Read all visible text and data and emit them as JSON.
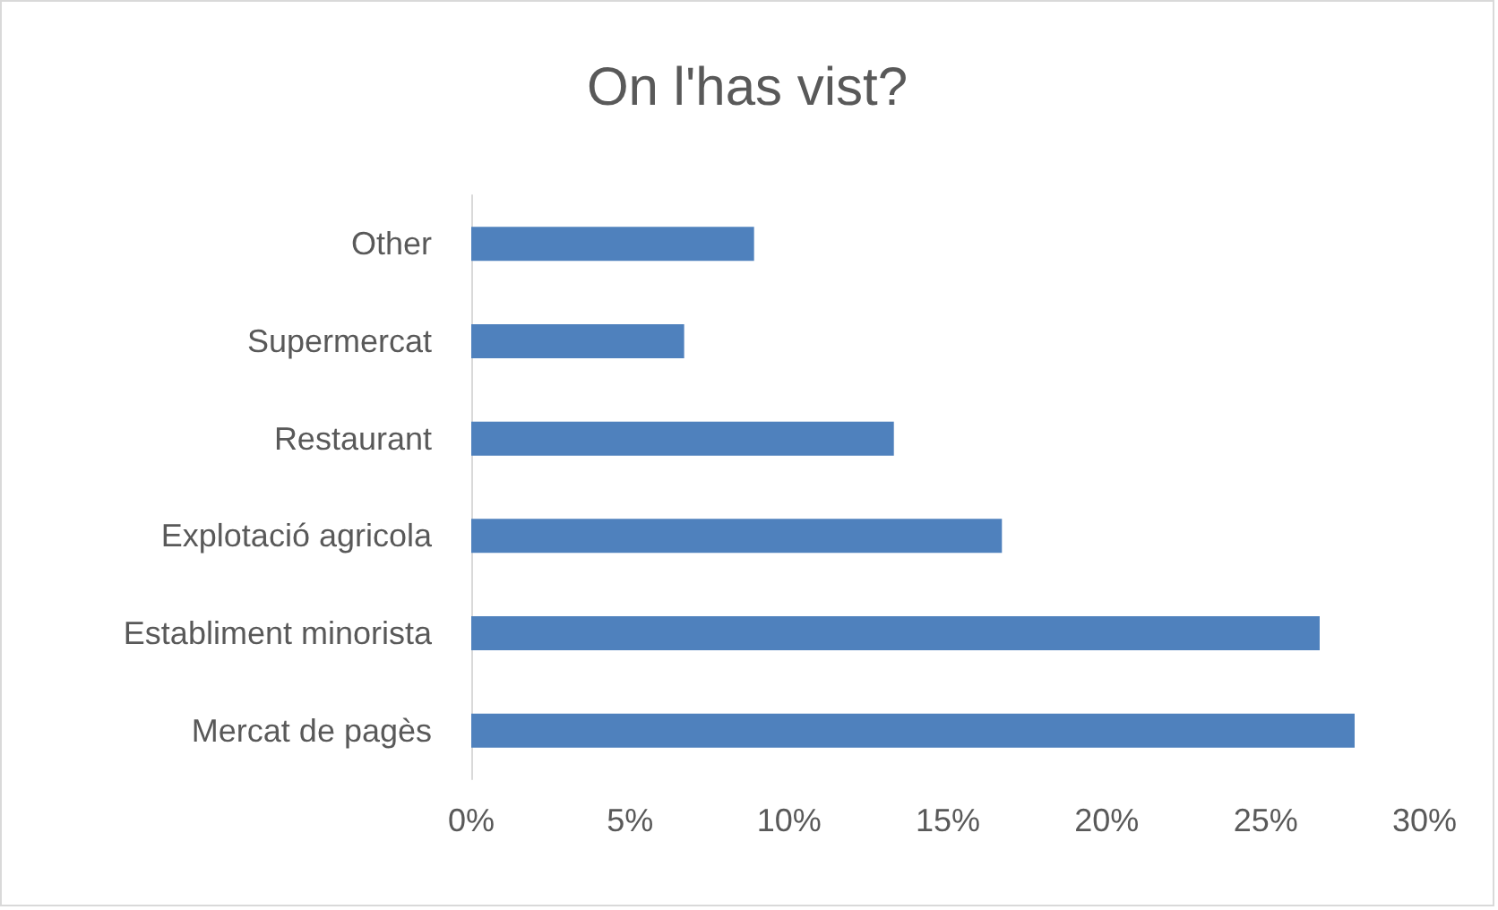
{
  "chart_data": {
    "type": "bar",
    "title": "On l'has vist?",
    "orientation": "horizontal",
    "categories": [
      "Other",
      "Supermercat",
      "Restaurant",
      "Explotació agricola",
      "Establiment minorista",
      "Mercat de pagès"
    ],
    "values": [
      8.9,
      6.7,
      13.3,
      16.7,
      26.7,
      27.8
    ],
    "color": "#4f81bd",
    "xlim": [
      0,
      30
    ],
    "xticks": [
      {
        "value": 0,
        "label": "0%"
      },
      {
        "value": 5,
        "label": "5%"
      },
      {
        "value": 10,
        "label": "10%"
      },
      {
        "value": 15,
        "label": "15%"
      },
      {
        "value": 20,
        "label": "20%"
      },
      {
        "value": 25,
        "label": "25%"
      },
      {
        "value": 30,
        "label": "30%"
      }
    ],
    "grid": false
  }
}
